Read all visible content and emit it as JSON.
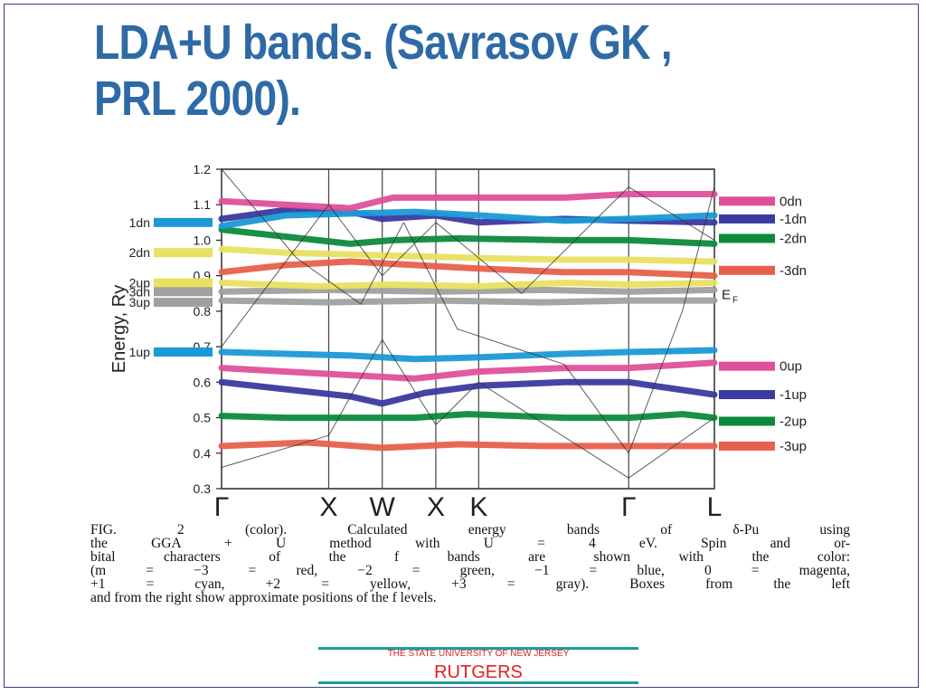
{
  "slide": {
    "title": "LDA+U bands. (Savrasov GK , PRL 2000).",
    "footer_top": "THE STATE UNIVERSITY OF NEW JERSEY",
    "footer_bottom": "RUTGERS"
  },
  "caption": {
    "lines": [
      "FIG. 2 (color). Calculated energy bands of δ-Pu using",
      "the GGA + U method with U = 4 eV. Spin and or-",
      "bital characters of the f bands are shown with the color:",
      "(m = −3 = red, −2 = green, −1 = blue, 0 = magenta,",
      "+1 = cyan, +2 = yellow, +3 = gray). Boxes from the left",
      "and from the right show approximate positions of the f levels."
    ]
  },
  "chart_data": {
    "type": "line",
    "ylabel": "Energy, Ry",
    "ylim": [
      0.3,
      1.2
    ],
    "yticks": [
      "0.3",
      "0.4",
      "0.5",
      "0.6",
      "0.7",
      "0.8",
      "0.9",
      "1.0",
      "1.1",
      "1.2"
    ],
    "kpoints": [
      {
        "label": "Γ",
        "x": 0
      },
      {
        "label": "X",
        "x": 1
      },
      {
        "label": "W",
        "x": 1.5
      },
      {
        "label": "X",
        "x": 2
      },
      {
        "label": "K",
        "x": 2.4
      },
      {
        "label": "Γ",
        "x": 3.8
      },
      {
        "label": "L",
        "x": 4.6
      }
    ],
    "colors": {
      "red": "#e8604c",
      "green": "#0c8a3c",
      "blue": "#3a3aa0",
      "magenta": "#e0509a",
      "cyan": "#1a9ad6",
      "yellow": "#e8e060",
      "gray": "#a0a0a0",
      "thin": "#333333"
    },
    "fermi_label": "E",
    "fermi_sub": "F",
    "fermi_energy": 0.85,
    "left_levels": [
      {
        "label": "1dn",
        "energy": 1.05,
        "color": "cyan"
      },
      {
        "label": "2dn",
        "energy": 0.965,
        "color": "yellow"
      },
      {
        "label": "2up",
        "energy": 0.88,
        "color": "yellow"
      },
      {
        "label": "3dn",
        "energy": 0.855,
        "color": "gray"
      },
      {
        "label": "3up",
        "energy": 0.825,
        "color": "gray"
      },
      {
        "label": "1up",
        "energy": 0.685,
        "color": "cyan"
      }
    ],
    "right_levels": [
      {
        "label": "0dn",
        "energy": 1.11,
        "color": "magenta"
      },
      {
        "label": "-1dn",
        "energy": 1.06,
        "color": "blue"
      },
      {
        "label": "-2dn",
        "energy": 1.005,
        "color": "green"
      },
      {
        "label": "-3dn",
        "energy": 0.915,
        "color": "red"
      },
      {
        "label": "0up",
        "energy": 0.645,
        "color": "magenta"
      },
      {
        "label": "-1up",
        "energy": 0.565,
        "color": "blue"
      },
      {
        "label": "-2up",
        "energy": 0.49,
        "color": "green"
      },
      {
        "label": "-3up",
        "energy": 0.42,
        "color": "red"
      }
    ],
    "bands": [
      {
        "color": "red",
        "points": [
          [
            0,
            0.42
          ],
          [
            0.8,
            0.43
          ],
          [
            1.5,
            0.415
          ],
          [
            2.2,
            0.425
          ],
          [
            3,
            0.42
          ],
          [
            3.8,
            0.42
          ],
          [
            4.6,
            0.42
          ]
        ]
      },
      {
        "color": "green",
        "points": [
          [
            0,
            0.505
          ],
          [
            0.6,
            0.5
          ],
          [
            1.2,
            0.5
          ],
          [
            1.8,
            0.5
          ],
          [
            2.3,
            0.51
          ],
          [
            3.2,
            0.5
          ],
          [
            3.8,
            0.5
          ],
          [
            4.3,
            0.51
          ],
          [
            4.6,
            0.5
          ]
        ]
      },
      {
        "color": "blue",
        "points": [
          [
            0,
            0.6
          ],
          [
            0.6,
            0.58
          ],
          [
            1.2,
            0.56
          ],
          [
            1.5,
            0.54
          ],
          [
            1.9,
            0.57
          ],
          [
            2.4,
            0.59
          ],
          [
            3.2,
            0.6
          ],
          [
            3.8,
            0.6
          ],
          [
            4.6,
            0.565
          ]
        ]
      },
      {
        "color": "magenta",
        "points": [
          [
            0,
            0.64
          ],
          [
            0.6,
            0.63
          ],
          [
            1.2,
            0.62
          ],
          [
            1.8,
            0.61
          ],
          [
            2.4,
            0.63
          ],
          [
            3.2,
            0.64
          ],
          [
            3.8,
            0.64
          ],
          [
            4.6,
            0.655
          ]
        ]
      },
      {
        "color": "cyan",
        "points": [
          [
            0,
            0.685
          ],
          [
            0.6,
            0.68
          ],
          [
            1.2,
            0.675
          ],
          [
            1.8,
            0.665
          ],
          [
            2.4,
            0.67
          ],
          [
            3.2,
            0.68
          ],
          [
            3.8,
            0.685
          ],
          [
            4.6,
            0.69
          ]
        ]
      },
      {
        "color": "gray",
        "points": [
          [
            0,
            0.83
          ],
          [
            1,
            0.825
          ],
          [
            2,
            0.83
          ],
          [
            3,
            0.825
          ],
          [
            3.8,
            0.83
          ],
          [
            4.6,
            0.83
          ]
        ]
      },
      {
        "color": "gray",
        "points": [
          [
            0,
            0.855
          ],
          [
            1,
            0.86
          ],
          [
            2,
            0.855
          ],
          [
            3,
            0.86
          ],
          [
            3.8,
            0.855
          ],
          [
            4.6,
            0.86
          ]
        ]
      },
      {
        "color": "yellow",
        "points": [
          [
            0,
            0.88
          ],
          [
            0.9,
            0.87
          ],
          [
            1.6,
            0.875
          ],
          [
            2.4,
            0.87
          ],
          [
            3.2,
            0.88
          ],
          [
            3.8,
            0.875
          ],
          [
            4.6,
            0.88
          ]
        ]
      },
      {
        "color": "red",
        "points": [
          [
            0,
            0.91
          ],
          [
            0.6,
            0.93
          ],
          [
            1.2,
            0.94
          ],
          [
            1.8,
            0.93
          ],
          [
            2.4,
            0.92
          ],
          [
            3.2,
            0.91
          ],
          [
            3.8,
            0.91
          ],
          [
            4.6,
            0.9
          ]
        ]
      },
      {
        "color": "yellow",
        "points": [
          [
            0,
            0.975
          ],
          [
            0.6,
            0.965
          ],
          [
            1.2,
            0.96
          ],
          [
            1.8,
            0.955
          ],
          [
            2.4,
            0.95
          ],
          [
            3.2,
            0.945
          ],
          [
            3.8,
            0.945
          ],
          [
            4.6,
            0.94
          ]
        ]
      },
      {
        "color": "green",
        "points": [
          [
            0,
            1.03
          ],
          [
            0.6,
            1.01
          ],
          [
            1.2,
            0.99
          ],
          [
            1.6,
            1.0
          ],
          [
            2.2,
            1.005
          ],
          [
            3.2,
            1.0
          ],
          [
            3.8,
            1.0
          ],
          [
            4.6,
            0.99
          ]
        ]
      },
      {
        "color": "blue",
        "points": [
          [
            0,
            1.06
          ],
          [
            0.6,
            1.085
          ],
          [
            1.2,
            1.08
          ],
          [
            1.5,
            1.06
          ],
          [
            2,
            1.07
          ],
          [
            2.4,
            1.05
          ],
          [
            3.2,
            1.06
          ],
          [
            3.8,
            1.055
          ],
          [
            4.6,
            1.05
          ]
        ]
      },
      {
        "color": "cyan",
        "points": [
          [
            0,
            1.04
          ],
          [
            0.6,
            1.07
          ],
          [
            1.2,
            1.075
          ],
          [
            1.8,
            1.08
          ],
          [
            2.4,
            1.07
          ],
          [
            3.2,
            1.055
          ],
          [
            3.8,
            1.06
          ],
          [
            4.6,
            1.07
          ]
        ]
      },
      {
        "color": "magenta",
        "points": [
          [
            0,
            1.11
          ],
          [
            0.6,
            1.1
          ],
          [
            1.2,
            1.09
          ],
          [
            1.6,
            1.12
          ],
          [
            2.4,
            1.12
          ],
          [
            3.2,
            1.12
          ],
          [
            3.8,
            1.13
          ],
          [
            4.6,
            1.13
          ]
        ]
      },
      {
        "color": "thin",
        "points": [
          [
            0,
            0.36
          ],
          [
            1,
            0.45
          ],
          [
            1.5,
            0.72
          ],
          [
            2,
            0.48
          ],
          [
            2.4,
            0.6
          ],
          [
            3.8,
            0.33
          ],
          [
            4.6,
            0.5
          ]
        ]
      },
      {
        "color": "thin",
        "points": [
          [
            0,
            1.2
          ],
          [
            0.7,
            0.95
          ],
          [
            1.3,
            0.82
          ],
          [
            1.7,
            1.05
          ],
          [
            2.2,
            0.75
          ],
          [
            3.2,
            0.65
          ],
          [
            3.8,
            0.4
          ],
          [
            4.3,
            0.8
          ],
          [
            4.6,
            1.15
          ]
        ]
      },
      {
        "color": "thin",
        "points": [
          [
            0,
            0.7
          ],
          [
            0.5,
            0.9
          ],
          [
            1,
            1.1
          ],
          [
            1.5,
            0.9
          ],
          [
            2,
            1.05
          ],
          [
            2.8,
            0.85
          ],
          [
            3.8,
            1.15
          ],
          [
            4.6,
            1.0
          ]
        ]
      }
    ]
  }
}
